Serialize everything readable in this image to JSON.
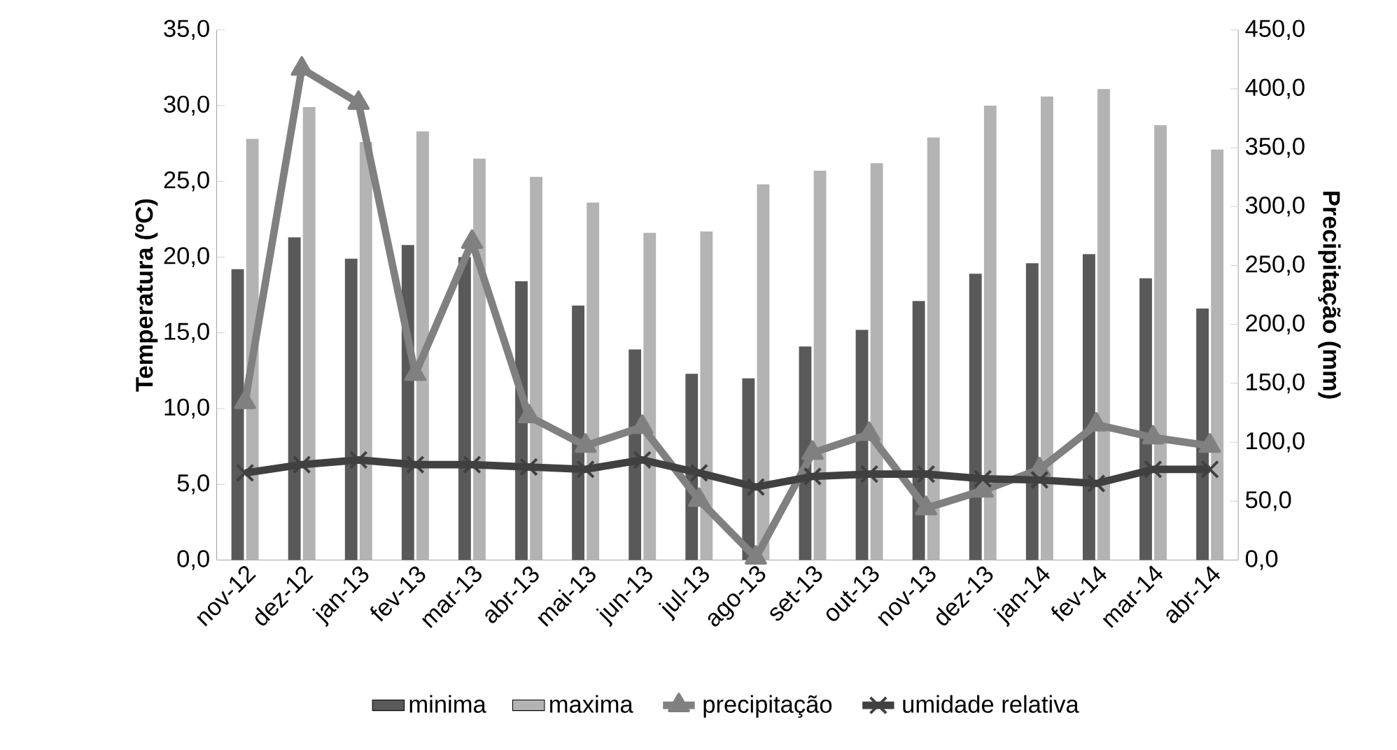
{
  "chart_data": {
    "type": "bar",
    "categories": [
      "nov-12",
      "dez-12",
      "jan-13",
      "fev-13",
      "mar-13",
      "abr-13",
      "mai-13",
      "jun-13",
      "jul-13",
      "ago-13",
      "set-13",
      "out-13",
      "nov-13",
      "dez-13",
      "jan-14",
      "fev-14",
      "mar-14",
      "abr-14"
    ],
    "ylabel": "Temperatura (ºC)",
    "y2label": "Precipitação (mm)",
    "ylim": [
      0,
      35
    ],
    "yticks": [
      {
        "value": 0,
        "label": "0,0"
      },
      {
        "value": 5,
        "label": "5,0"
      },
      {
        "value": 10,
        "label": "10,0"
      },
      {
        "value": 15,
        "label": "15,0"
      },
      {
        "value": 20,
        "label": "20,0"
      },
      {
        "value": 25,
        "label": "25,0"
      },
      {
        "value": 30,
        "label": "30,0"
      },
      {
        "value": 35,
        "label": "35,0"
      }
    ],
    "y2lim": [
      0,
      450
    ],
    "y2ticks": [
      {
        "value": 0,
        "label": "0,0"
      },
      {
        "value": 50,
        "label": "50,0"
      },
      {
        "value": 100,
        "label": "100,0"
      },
      {
        "value": 150,
        "label": "150,0"
      },
      {
        "value": 200,
        "label": "200,0"
      },
      {
        "value": 250,
        "label": "250,0"
      },
      {
        "value": 300,
        "label": "300,0"
      },
      {
        "value": 350,
        "label": "350,0"
      },
      {
        "value": 400,
        "label": "400,0"
      },
      {
        "value": 450,
        "label": "450,0"
      }
    ],
    "legend": "bottom",
    "series": [
      {
        "name": "minima",
        "color": "#595959",
        "values": [
          19.2,
          21.3,
          19.9,
          20.8,
          20.0,
          18.4,
          16.8,
          13.9,
          12.3,
          12.0,
          14.1,
          15.2,
          17.1,
          18.9,
          19.6,
          20.2,
          18.6,
          16.6
        ]
      },
      {
        "name": "maxima",
        "color": "#b3b3b3",
        "values": [
          27.8,
          29.9,
          27.6,
          28.3,
          26.5,
          25.3,
          23.6,
          21.6,
          21.7,
          24.8,
          25.7,
          26.2,
          27.9,
          30.0,
          30.6,
          31.1,
          28.7,
          27.1
        ]
      },
      {
        "name": "precipitação",
        "type": "line",
        "axis": "y2",
        "marker": "triangle",
        "color": "#808080",
        "values": [
          134,
          417,
          388,
          158,
          270,
          122,
          97,
          113,
          51,
          2,
          91,
          107,
          44,
          59,
          77,
          115,
          104,
          97
        ]
      },
      {
        "name": "umidade relativa",
        "type": "line",
        "axis": "y2",
        "marker": "cross",
        "color": "#404040",
        "values": [
          74,
          81,
          85,
          81,
          81,
          79,
          77,
          85,
          74,
          62,
          71,
          73,
          73,
          69,
          68,
          65,
          77,
          77
        ]
      }
    ]
  }
}
